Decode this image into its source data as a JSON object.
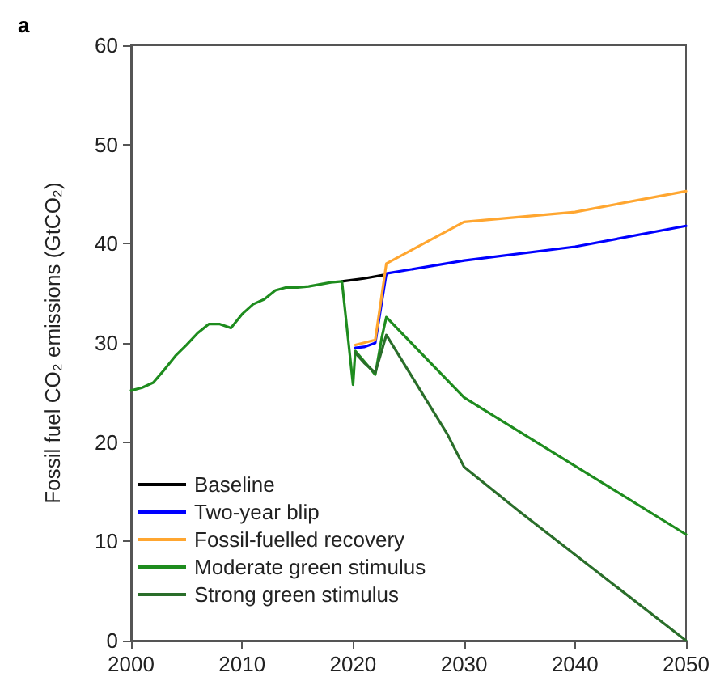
{
  "chart_data": {
    "type": "line",
    "title": "a",
    "ylabel": "Fossil fuel CO₂ emissions (GtCO₂)",
    "xlim": [
      2000,
      2050
    ],
    "xticks": [
      2000,
      2010,
      2020,
      2030,
      2040,
      2050
    ],
    "ylim": [
      0,
      60
    ],
    "yticks": [
      0,
      10,
      20,
      30,
      40,
      50,
      60
    ],
    "grid": false,
    "legend": "bottom left",
    "marker": "none",
    "line_style": "solid",
    "series": [
      {
        "name": "Baseline",
        "color": "#000000",
        "x": [
          2019,
          2021,
          2023
        ],
        "values": [
          36.2,
          36.5,
          36.9
        ]
      },
      {
        "name": "Two-year blip",
        "color": "#0000ff",
        "x": [
          2020.2,
          2021,
          2022,
          2023,
          2030,
          2040,
          2050
        ],
        "values": [
          29.5,
          29.6,
          30,
          37,
          38.3,
          39.7,
          41.8
        ]
      },
      {
        "name": "Fossil-fuelled recovery",
        "color": "#ffa630",
        "x": [
          2020.2,
          2022,
          2023,
          2030,
          2040,
          2050
        ],
        "values": [
          29.8,
          30.3,
          38,
          42.2,
          43.2,
          45.3
        ]
      },
      {
        "name": "Moderate green stimulus",
        "color": "#1e8c1e",
        "x": [
          2000,
          2001,
          2002,
          2003,
          2004,
          2005,
          2006,
          2007,
          2008,
          2009,
          2010,
          2011,
          2012,
          2013,
          2014,
          2015,
          2016,
          2017,
          2018,
          2019,
          2020,
          2020.2,
          2021.5,
          2022,
          2022.6,
          2023,
          2030,
          2050
        ],
        "values": [
          25.2,
          25.5,
          26,
          27.3,
          28.7,
          29.8,
          31,
          31.9,
          31.9,
          31.5,
          32.9,
          33.9,
          34.4,
          35.3,
          35.6,
          35.6,
          35.7,
          35.9,
          36.1,
          36.2,
          25.8,
          29.2,
          27.5,
          26.8,
          30.6,
          32.6,
          24.5,
          10.7
        ]
      },
      {
        "name": "Strong green stimulus",
        "color": "#2a6e2a",
        "x": [
          2020.2,
          2021,
          2022,
          2023,
          2028.5,
          2030,
          2035,
          2050
        ],
        "values": [
          29,
          28,
          27,
          30.8,
          20.8,
          17.5,
          13,
          0
        ]
      }
    ]
  }
}
